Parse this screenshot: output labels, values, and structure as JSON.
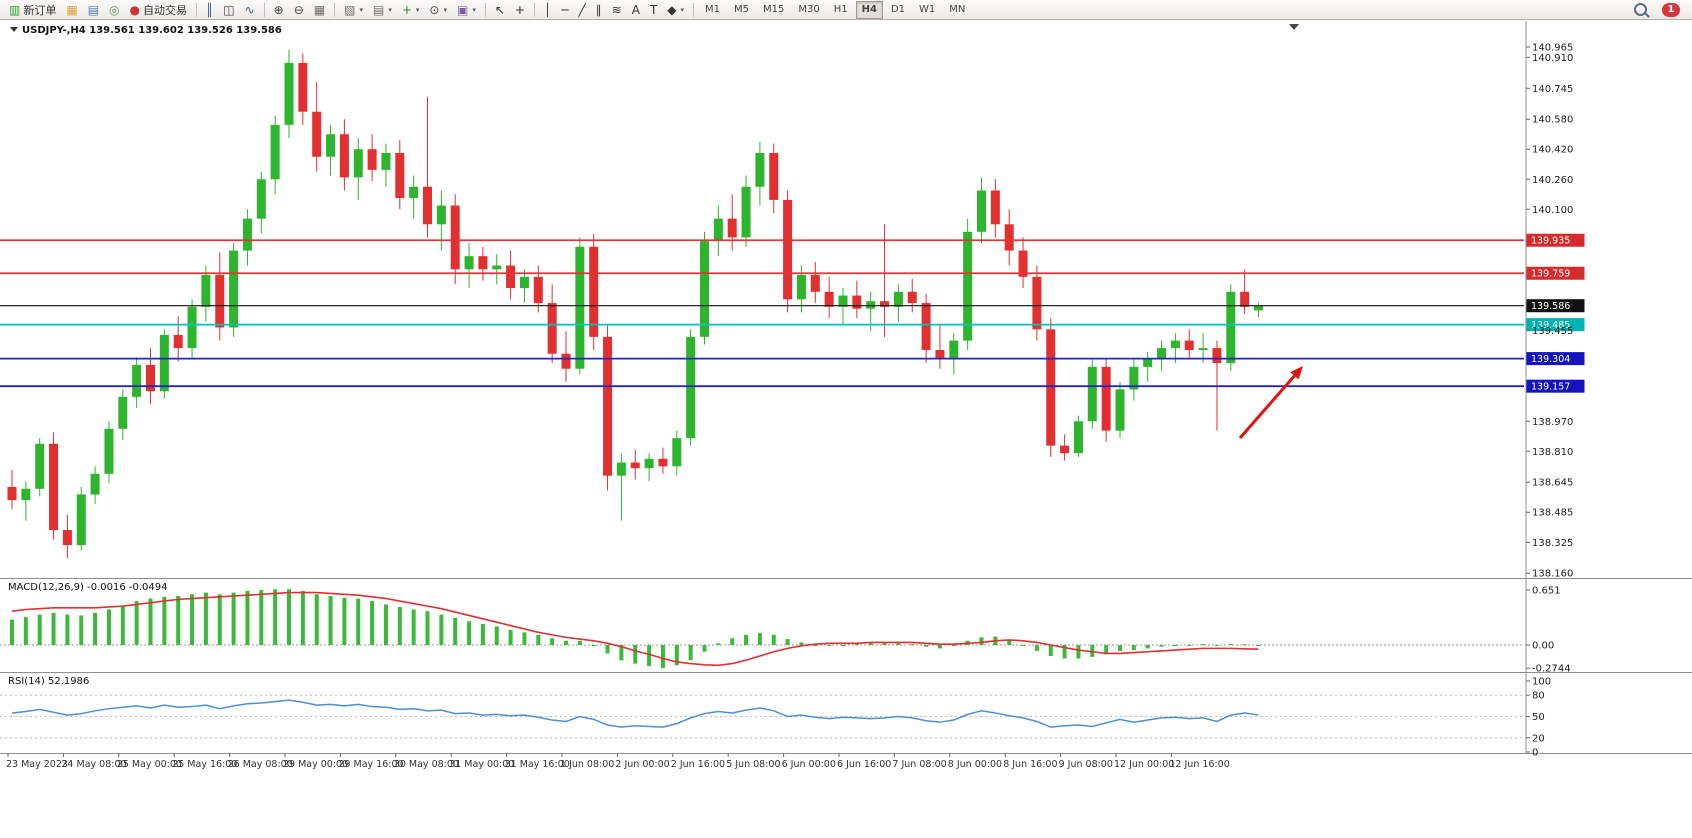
{
  "colors": {
    "candle_up": "#2db52d",
    "candle_down": "#e23030",
    "macd_hist": "#3cb93c",
    "macd_signal": "#e03030",
    "rsi_line": "#4a90d9",
    "level_red": "#e23434",
    "level_blue": "#2424c8",
    "level_cyan": "#00c2c2",
    "current_price_color": "#111111"
  },
  "toolbar": {
    "items": [
      {
        "name": "new-order-button",
        "glyph": "▥",
        "color": "#2f9e2f",
        "label": "新订单"
      },
      {
        "name": "mql5-market-button",
        "glyph": "▦",
        "color": "#d9a23a"
      },
      {
        "name": "data-window-button",
        "glyph": "▤",
        "color": "#4a7ab5"
      },
      {
        "name": "community-button",
        "glyph": "◎",
        "color": "#6d8f6d"
      },
      {
        "name": "autotrade-button",
        "glyph": "●",
        "color": "#cc3535",
        "label": "自动交易"
      },
      {
        "sep": true
      },
      {
        "name": "bar-chart-button",
        "glyph": "║",
        "color": "#2f5f8f"
      },
      {
        "name": "candlestick-chart-button",
        "glyph": "◫",
        "color": "#444444"
      },
      {
        "name": "line-chart-button",
        "glyph": "∿",
        "color": "#2f5f8f"
      },
      {
        "sep": true
      },
      {
        "name": "zoom-in-button",
        "glyph": "⊕",
        "color": "#444444"
      },
      {
        "name": "zoom-out-button",
        "glyph": "⊖",
        "color": "#444444"
      },
      {
        "name": "tile-windows-button",
        "glyph": "▦",
        "color": "#6d6d6d"
      },
      {
        "sep": true
      },
      {
        "name": "new-chart-button",
        "glyph": "▧",
        "color": "#6d6d6d",
        "caret": true
      },
      {
        "name": "profiles-button",
        "glyph": "▤",
        "color": "#6d6d6d",
        "caret": true
      },
      {
        "name": "indicators-button",
        "glyph": "+",
        "color": "#1d8f1d",
        "caret": true
      },
      {
        "name": "periods-button",
        "glyph": "⊙",
        "color": "#444444",
        "caret": true
      },
      {
        "name": "templates-button",
        "glyph": "▣",
        "color": "#7a5aa5",
        "caret": true
      },
      {
        "sep": true
      },
      {
        "name": "cursor-button",
        "glyph": "↖",
        "color": "#333333"
      },
      {
        "name": "crosshair-button",
        "glyph": "+",
        "color": "#333333"
      },
      {
        "sep": true
      },
      {
        "name": "vertical-line-button",
        "glyph": "│",
        "color": "#333333"
      },
      {
        "name": "horizontal-line-button",
        "glyph": "─",
        "color": "#333333"
      },
      {
        "name": "trendline-button",
        "glyph": "╱",
        "color": "#333333"
      },
      {
        "name": "channel-button",
        "glyph": "∥",
        "color": "#333333"
      },
      {
        "name": "fibonacci-button",
        "glyph": "≋",
        "color": "#333333"
      },
      {
        "name": "text-button",
        "glyph": "A",
        "color": "#333333"
      },
      {
        "name": "text-label-button",
        "glyph": "T",
        "color": "#333333"
      },
      {
        "name": "shapes-button",
        "glyph": "◆",
        "color": "#333333",
        "caret": true
      },
      {
        "sep": true
      }
    ],
    "timeframes": [
      "M1",
      "M5",
      "M15",
      "M30",
      "H1",
      "H4",
      "D1",
      "W1",
      "MN"
    ],
    "active_timeframe": "H4",
    "notification_count": "1"
  },
  "chart": {
    "symbol_info": "USDJPY-,H4 139.561 139.602 139.526 139.586",
    "price_axis_labels": [
      "140.965",
      "140.910",
      "140.745",
      "140.580",
      "140.420",
      "140.260",
      "140.100",
      "139.455",
      "138.970",
      "138.810",
      "138.645",
      "138.485",
      "138.325",
      "138.160"
    ],
    "hlines": [
      {
        "price": 139.935,
        "label": "139.935",
        "color": "#e23434",
        "badge": "#d42c2c"
      },
      {
        "price": 139.759,
        "label": "139.759",
        "color": "#e23434",
        "badge": "#d42c2c"
      },
      {
        "price": 139.586,
        "label": "139.586",
        "color": "#111111",
        "badge": "#111111",
        "current": true
      },
      {
        "price": 139.485,
        "label": "139.485",
        "color": "#00c2c2",
        "badge": "#00b2b2"
      },
      {
        "price": 139.304,
        "label": "139.304",
        "color": "#2424c8",
        "badge": "#1414be"
      },
      {
        "price": 139.157,
        "label": "139.157",
        "color": "#2424c8",
        "badge": "#1414be"
      }
    ],
    "time_axis_labels": [
      "23 May 2023",
      "24 May 08:00",
      "25 May 00:00",
      "25 May 16:00",
      "26 May 08:00",
      "29 May 00:00",
      "29 May 16:00",
      "30 May 08:00",
      "31 May 00:00",
      "31 May 16:00",
      "1 Jun 08:00",
      "2 Jun 00:00",
      "2 Jun 16:00",
      "5 Jun 08:00",
      "6 Jun 00:00",
      "6 Jun 16:00",
      "7 Jun 08:00",
      "8 Jun 00:00",
      "8 Jun 16:00",
      "9 Jun 08:00",
      "12 Jun 00:00",
      "12 Jun 16:00"
    ]
  },
  "macd": {
    "label": "MACD(12,26,9) -0.0016 -0.0494",
    "axis_labels": [
      "0.651",
      "0.00",
      "-0.2744"
    ]
  },
  "rsi": {
    "label": "RSI(14) 52.1986",
    "axis_labels": [
      "100",
      "80",
      "50",
      "20",
      "0"
    ]
  },
  "annotation": {
    "type": "arrow",
    "from": [
      1240,
      438
    ],
    "to": [
      1303,
      366
    ],
    "color": "#e01212",
    "width": 3
  },
  "chart_data": {
    "type": "candlestick",
    "symbol": "USDJPY-",
    "timeframe": "H4",
    "price_range": [
      138.16,
      140.965
    ],
    "current_ohlc": {
      "open": 139.561,
      "high": 139.602,
      "low": 139.526,
      "close": 139.586
    },
    "levels": [
      139.935,
      139.759,
      139.586,
      139.485,
      139.304,
      139.157
    ],
    "ohlc": [
      [
        138.62,
        138.71,
        138.5,
        138.55
      ],
      [
        138.55,
        138.65,
        138.44,
        138.61
      ],
      [
        138.61,
        138.88,
        138.57,
        138.85
      ],
      [
        138.85,
        138.91,
        138.34,
        138.39
      ],
      [
        138.39,
        138.47,
        138.24,
        138.31
      ],
      [
        138.31,
        138.62,
        138.28,
        138.58
      ],
      [
        138.58,
        138.73,
        138.53,
        138.69
      ],
      [
        138.69,
        138.97,
        138.64,
        138.93
      ],
      [
        138.93,
        139.14,
        138.87,
        139.1
      ],
      [
        139.1,
        139.31,
        139.04,
        139.27
      ],
      [
        139.27,
        139.36,
        139.06,
        139.13
      ],
      [
        139.13,
        139.46,
        139.09,
        139.43
      ],
      [
        139.43,
        139.53,
        139.29,
        139.36
      ],
      [
        139.36,
        139.62,
        139.31,
        139.58
      ],
      [
        139.58,
        139.8,
        139.5,
        139.75
      ],
      [
        139.75,
        139.87,
        139.4,
        139.47
      ],
      [
        139.47,
        139.92,
        139.42,
        139.88
      ],
      [
        139.88,
        140.1,
        139.8,
        140.05
      ],
      [
        140.05,
        140.3,
        139.97,
        140.26
      ],
      [
        140.26,
        140.6,
        140.18,
        140.55
      ],
      [
        140.55,
        140.95,
        140.48,
        140.88
      ],
      [
        140.88,
        140.93,
        140.55,
        140.62
      ],
      [
        140.62,
        140.78,
        140.3,
        140.38
      ],
      [
        140.38,
        140.55,
        140.28,
        140.5
      ],
      [
        140.5,
        140.58,
        140.2,
        140.27
      ],
      [
        140.27,
        140.48,
        140.15,
        140.42
      ],
      [
        140.42,
        140.5,
        140.25,
        140.31
      ],
      [
        140.31,
        140.45,
        140.22,
        140.4
      ],
      [
        140.4,
        140.47,
        140.1,
        140.16
      ],
      [
        140.16,
        140.28,
        140.05,
        140.22
      ],
      [
        140.22,
        140.7,
        139.95,
        140.02
      ],
      [
        140.02,
        140.2,
        139.88,
        140.12
      ],
      [
        140.12,
        140.18,
        139.7,
        139.78
      ],
      [
        139.78,
        139.92,
        139.68,
        139.85
      ],
      [
        139.85,
        139.9,
        139.72,
        139.78
      ],
      [
        139.78,
        139.86,
        139.7,
        139.8
      ],
      [
        139.8,
        139.88,
        139.62,
        139.68
      ],
      [
        139.68,
        139.78,
        139.6,
        139.74
      ],
      [
        139.74,
        139.8,
        139.55,
        139.6
      ],
      [
        139.6,
        139.7,
        139.28,
        139.33
      ],
      [
        139.33,
        139.45,
        139.18,
        139.25
      ],
      [
        139.25,
        139.95,
        139.22,
        139.9
      ],
      [
        139.9,
        139.97,
        139.35,
        139.42
      ],
      [
        139.42,
        139.48,
        138.6,
        138.68
      ],
      [
        138.68,
        138.8,
        138.44,
        138.75
      ],
      [
        138.75,
        138.82,
        138.66,
        138.72
      ],
      [
        138.72,
        138.8,
        138.65,
        138.77
      ],
      [
        138.77,
        138.83,
        138.69,
        138.73
      ],
      [
        138.73,
        138.92,
        138.68,
        138.88
      ],
      [
        138.88,
        139.46,
        138.84,
        139.42
      ],
      [
        139.42,
        139.98,
        139.38,
        139.93
      ],
      [
        139.93,
        140.12,
        139.85,
        140.05
      ],
      [
        140.05,
        140.18,
        139.88,
        139.95
      ],
      [
        139.95,
        140.28,
        139.9,
        140.22
      ],
      [
        140.22,
        140.46,
        140.12,
        140.4
      ],
      [
        140.4,
        140.45,
        140.08,
        140.15
      ],
      [
        140.15,
        140.2,
        139.55,
        139.62
      ],
      [
        139.62,
        139.8,
        139.55,
        139.75
      ],
      [
        139.75,
        139.82,
        139.6,
        139.66
      ],
      [
        139.66,
        139.74,
        139.52,
        139.58
      ],
      [
        139.58,
        139.68,
        139.48,
        139.64
      ],
      [
        139.64,
        139.72,
        139.52,
        139.57
      ],
      [
        139.57,
        139.66,
        139.45,
        139.61
      ],
      [
        139.61,
        140.02,
        139.42,
        139.58
      ],
      [
        139.58,
        139.7,
        139.5,
        139.66
      ],
      [
        139.66,
        139.73,
        139.55,
        139.6
      ],
      [
        139.6,
        139.65,
        139.28,
        139.35
      ],
      [
        139.35,
        139.48,
        139.25,
        139.3
      ],
      [
        139.3,
        139.44,
        139.22,
        139.4
      ],
      [
        139.4,
        140.05,
        139.35,
        139.98
      ],
      [
        139.98,
        140.27,
        139.92,
        140.2
      ],
      [
        140.2,
        140.26,
        139.95,
        140.02
      ],
      [
        140.02,
        140.1,
        139.8,
        139.88
      ],
      [
        139.88,
        139.95,
        139.68,
        139.74
      ],
      [
        139.74,
        139.8,
        139.4,
        139.46
      ],
      [
        139.46,
        139.52,
        138.78,
        138.84
      ],
      [
        138.84,
        138.9,
        138.76,
        138.8
      ],
      [
        138.8,
        139.0,
        138.78,
        138.97
      ],
      [
        138.97,
        139.3,
        138.93,
        139.26
      ],
      [
        139.26,
        139.3,
        138.86,
        138.92
      ],
      [
        138.92,
        139.18,
        138.88,
        139.14
      ],
      [
        139.14,
        139.3,
        139.08,
        139.26
      ],
      [
        139.26,
        139.34,
        139.18,
        139.3
      ],
      [
        139.3,
        139.4,
        139.24,
        139.36
      ],
      [
        139.36,
        139.44,
        139.28,
        139.4
      ],
      [
        139.4,
        139.46,
        139.3,
        139.35
      ],
      [
        139.35,
        139.44,
        139.28,
        139.36
      ],
      [
        139.36,
        139.4,
        138.92,
        139.28
      ],
      [
        139.28,
        139.7,
        139.24,
        139.66
      ],
      [
        139.66,
        139.78,
        139.54,
        139.58
      ],
      [
        139.561,
        139.602,
        139.526,
        139.586
      ]
    ],
    "macd": {
      "params": "12,26,9",
      "histogram": [
        0.3,
        0.33,
        0.36,
        0.38,
        0.36,
        0.35,
        0.38,
        0.42,
        0.47,
        0.52,
        0.55,
        0.57,
        0.58,
        0.6,
        0.62,
        0.6,
        0.62,
        0.64,
        0.65,
        0.66,
        0.66,
        0.64,
        0.6,
        0.58,
        0.56,
        0.55,
        0.52,
        0.48,
        0.45,
        0.42,
        0.4,
        0.36,
        0.32,
        0.28,
        0.25,
        0.22,
        0.18,
        0.15,
        0.12,
        0.08,
        0.05,
        0.05,
        0.0,
        -0.1,
        -0.18,
        -0.22,
        -0.25,
        -0.274,
        -0.24,
        -0.18,
        -0.08,
        0.02,
        0.08,
        0.12,
        0.14,
        0.12,
        0.07,
        0.03,
        0.0,
        -0.01,
        0.0,
        0.02,
        0.03,
        0.03,
        0.02,
        0.01,
        -0.02,
        -0.04,
        0.0,
        0.05,
        0.09,
        0.1,
        0.06,
        0.0,
        -0.07,
        -0.13,
        -0.16,
        -0.16,
        -0.14,
        -0.11,
        -0.07,
        -0.06,
        -0.04,
        -0.02,
        -0.01,
        0.0,
        0.01,
        -0.01,
        0.01,
        0.01,
        -0.0016
      ],
      "signal": [
        0.4,
        0.42,
        0.43,
        0.44,
        0.44,
        0.44,
        0.44,
        0.45,
        0.46,
        0.48,
        0.5,
        0.52,
        0.54,
        0.55,
        0.56,
        0.57,
        0.58,
        0.59,
        0.6,
        0.61,
        0.62,
        0.62,
        0.62,
        0.61,
        0.6,
        0.59,
        0.57,
        0.55,
        0.52,
        0.49,
        0.46,
        0.43,
        0.39,
        0.35,
        0.31,
        0.27,
        0.23,
        0.19,
        0.15,
        0.12,
        0.09,
        0.07,
        0.05,
        0.02,
        -0.02,
        -0.07,
        -0.11,
        -0.16,
        -0.2,
        -0.22,
        -0.235,
        -0.24,
        -0.22,
        -0.18,
        -0.13,
        -0.08,
        -0.04,
        -0.01,
        0.01,
        0.02,
        0.02,
        0.02,
        0.03,
        0.03,
        0.03,
        0.03,
        0.02,
        0.01,
        0.01,
        0.02,
        0.03,
        0.05,
        0.06,
        0.05,
        0.03,
        0.0,
        -0.03,
        -0.06,
        -0.08,
        -0.1,
        -0.1,
        -0.09,
        -0.08,
        -0.07,
        -0.06,
        -0.05,
        -0.04,
        -0.04,
        -0.04,
        -0.045,
        -0.0494
      ]
    },
    "rsi": {
      "params": "14",
      "values": [
        55,
        57,
        60,
        56,
        52,
        54,
        58,
        61,
        63,
        65,
        62,
        66,
        63,
        64,
        66,
        61,
        65,
        68,
        69,
        71,
        73,
        70,
        66,
        67,
        65,
        67,
        64,
        63,
        60,
        61,
        58,
        59,
        54,
        55,
        52,
        53,
        51,
        52,
        49,
        45,
        43,
        50,
        46,
        38,
        35,
        37,
        36,
        35,
        40,
        48,
        54,
        57,
        55,
        59,
        62,
        58,
        50,
        52,
        49,
        47,
        49,
        48,
        47,
        48,
        50,
        48,
        44,
        42,
        45,
        53,
        58,
        55,
        51,
        48,
        43,
        35,
        37,
        38,
        36,
        41,
        46,
        42,
        45,
        48,
        49,
        47,
        48,
        43,
        52,
        55,
        52.2
      ]
    }
  }
}
